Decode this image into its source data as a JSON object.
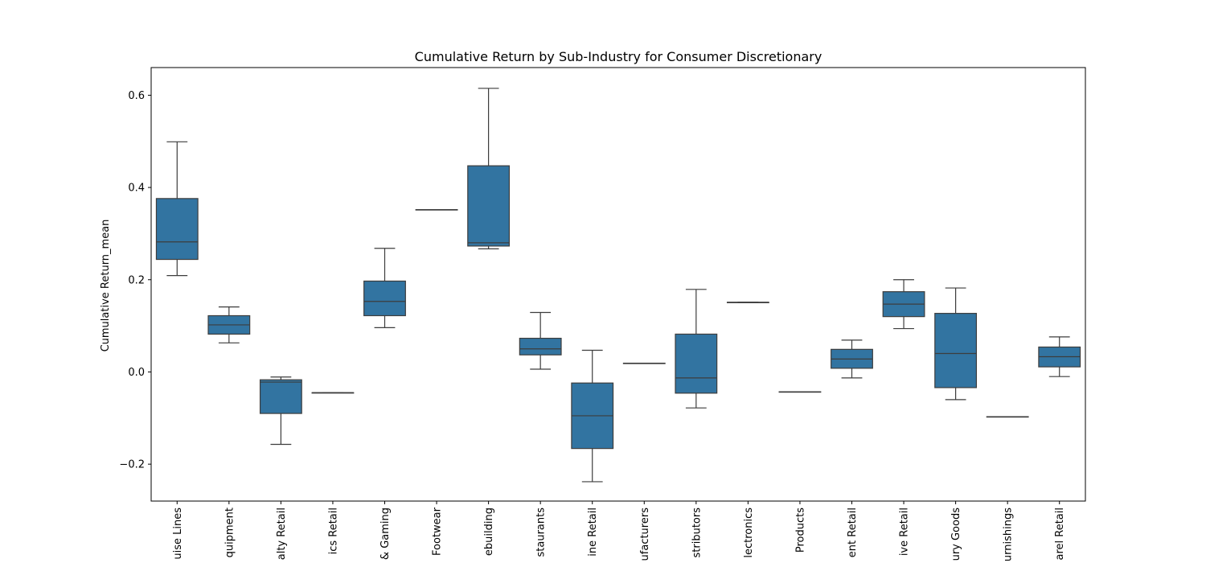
{
  "chart_data": {
    "type": "box",
    "title": "Cumulative Return by Sub-Industry for Consumer Discretionary",
    "xlabel": "",
    "ylabel": "Cumulative Return_mean",
    "ylim": [
      -0.28,
      0.66
    ],
    "yticks": [
      -0.2,
      0.0,
      0.2,
      0.4,
      0.6
    ],
    "ytick_labels": [
      "−0.2",
      "0.0",
      "0.2",
      "0.4",
      "0.6"
    ],
    "grid": false,
    "box_color": "#3274a1",
    "line_color": "#3d3d3d",
    "categories": [
      "uise Lines",
      "quipment",
      "alty Retail",
      "ics Retail",
      "& Gaming",
      "Footwear",
      "ebuilding",
      "staurants",
      "ine Retail",
      "ufacturers",
      "stributors",
      "lectronics",
      "Products",
      "ent Retail",
      "ive Retail",
      "ury Goods",
      "urnishings",
      "arel Retail"
    ],
    "boxes": [
      {
        "whislo": 0.209,
        "q1": 0.244,
        "med": 0.282,
        "q3": 0.376,
        "whishi": 0.499
      },
      {
        "whislo": 0.063,
        "q1": 0.082,
        "med": 0.102,
        "q3": 0.122,
        "whishi": 0.141
      },
      {
        "whislo": -0.157,
        "q1": -0.09,
        "med": -0.022,
        "q3": -0.017,
        "whishi": -0.011
      },
      {
        "whislo": -0.045,
        "q1": -0.045,
        "med": -0.045,
        "q3": -0.045,
        "whishi": -0.045
      },
      {
        "whislo": 0.096,
        "q1": 0.122,
        "med": 0.153,
        "q3": 0.197,
        "whishi": 0.268
      },
      {
        "whislo": 0.352,
        "q1": 0.352,
        "med": 0.352,
        "q3": 0.352,
        "whishi": 0.352
      },
      {
        "whislo": 0.267,
        "q1": 0.273,
        "med": 0.28,
        "q3": 0.447,
        "whishi": 0.615
      },
      {
        "whislo": 0.006,
        "q1": 0.037,
        "med": 0.05,
        "q3": 0.073,
        "whishi": 0.129
      },
      {
        "whislo": -0.238,
        "q1": -0.166,
        "med": -0.095,
        "q3": -0.024,
        "whishi": 0.047
      },
      {
        "whislo": 0.019,
        "q1": 0.019,
        "med": 0.019,
        "q3": 0.019,
        "whishi": 0.019
      },
      {
        "whislo": -0.078,
        "q1": -0.046,
        "med": -0.013,
        "q3": 0.082,
        "whishi": 0.179
      },
      {
        "whislo": 0.151,
        "q1": 0.151,
        "med": 0.151,
        "q3": 0.151,
        "whishi": 0.151
      },
      {
        "whislo": -0.043,
        "q1": -0.043,
        "med": -0.043,
        "q3": -0.043,
        "whishi": -0.043
      },
      {
        "whislo": -0.013,
        "q1": 0.008,
        "med": 0.028,
        "q3": 0.049,
        "whishi": 0.069
      },
      {
        "whislo": 0.094,
        "q1": 0.12,
        "med": 0.147,
        "q3": 0.174,
        "whishi": 0.2
      },
      {
        "whislo": -0.06,
        "q1": -0.034,
        "med": 0.04,
        "q3": 0.127,
        "whishi": 0.182
      },
      {
        "whislo": -0.097,
        "q1": -0.097,
        "med": -0.097,
        "q3": -0.097,
        "whishi": -0.097
      },
      {
        "whislo": -0.01,
        "q1": 0.011,
        "med": 0.033,
        "q3": 0.054,
        "whishi": 0.076
      }
    ]
  }
}
